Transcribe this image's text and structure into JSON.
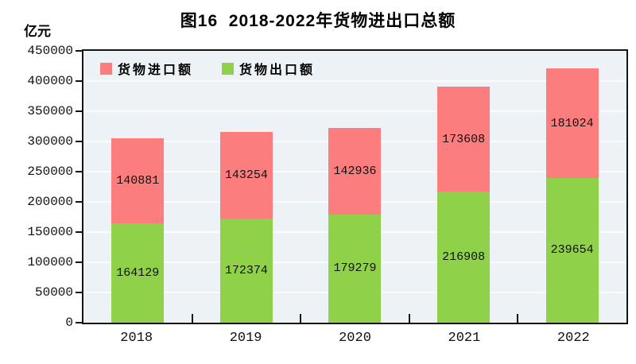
{
  "title": "图16  2018-2022年货物进出口总额",
  "unit_label": "亿元",
  "legend": [
    {
      "label": "货物进口额",
      "color": "#FB7D7D"
    },
    {
      "label": "货物出口额",
      "color": "#90D14A"
    }
  ],
  "chart_data": {
    "type": "bar",
    "stacked": true,
    "title": "图16 2018-2022年货物进出口总额",
    "ylabel": "亿元",
    "categories": [
      "2018",
      "2019",
      "2020",
      "2021",
      "2022"
    ],
    "series": [
      {
        "name": "货物出口额",
        "stack_position": "bottom",
        "color": "#90D14A",
        "values": [
          164129,
          172374,
          179279,
          216908,
          239654
        ]
      },
      {
        "name": "货物进口额",
        "stack_position": "top",
        "color": "#FB7D7D",
        "values": [
          140881,
          143254,
          142936,
          173608,
          181024
        ]
      }
    ],
    "totals": [
      305010,
      315628,
      322215,
      390516,
      420678
    ],
    "ylim": [
      0,
      450000
    ],
    "yticks": [
      0,
      50000,
      100000,
      150000,
      200000,
      250000,
      300000,
      350000,
      400000,
      450000
    ],
    "grid": true,
    "legend_position": "top-left-inside",
    "colors": {
      "plot_background": "#EDF2F6",
      "grid_line": "#F9FBFC",
      "axis_border": "#141414",
      "label_text": "#111111"
    }
  }
}
